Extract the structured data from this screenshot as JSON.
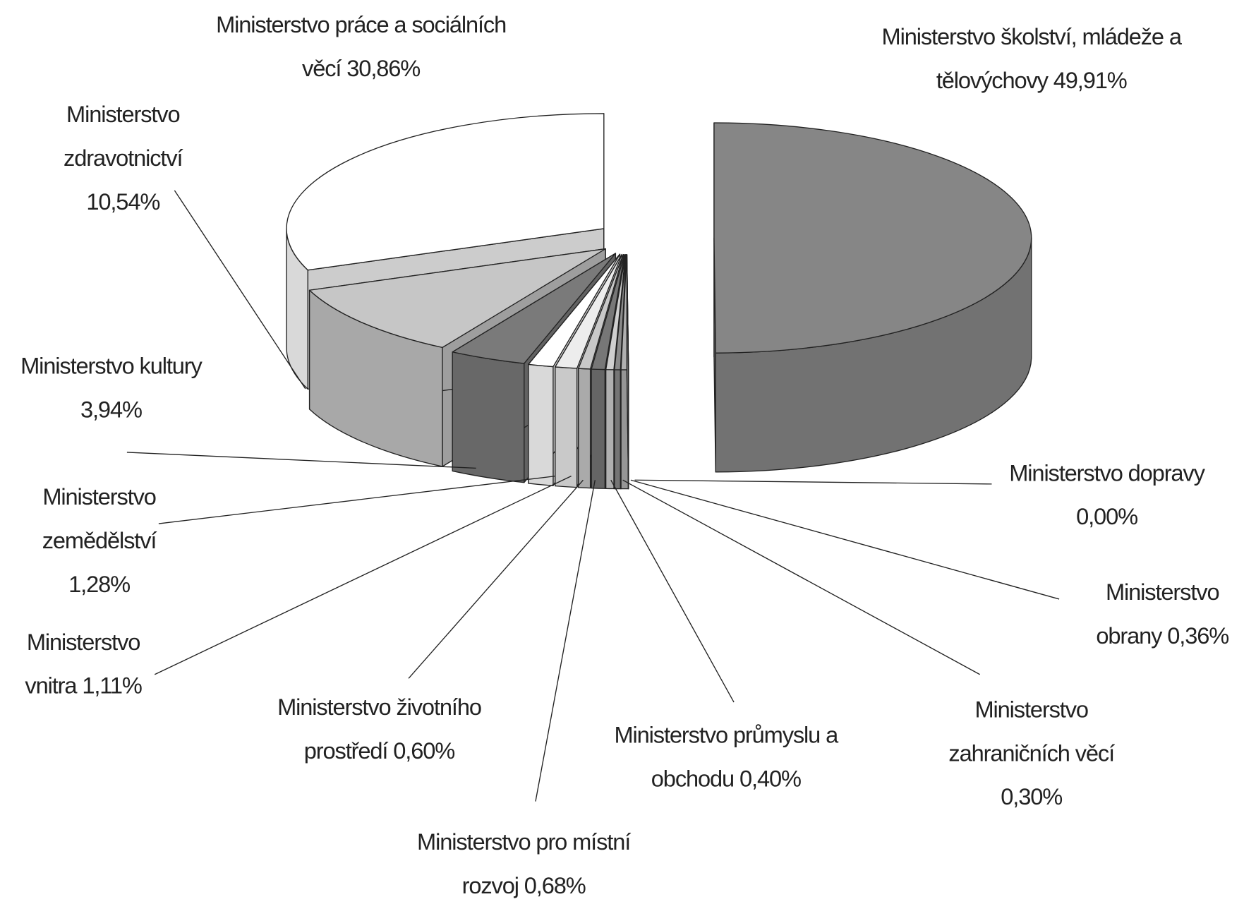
{
  "chart_data": {
    "type": "pie3d",
    "categories": [
      "Ministerstvo školství, mládeže a tělovýchovy",
      "Ministerstvo dopravy",
      "Ministerstvo obrany",
      "Ministerstvo zahraničních věcí",
      "Ministerstvo průmyslu a obchodu",
      "Ministerstvo pro místní rozvoj",
      "Ministerstvo životního prostředí",
      "Ministerstvo vnitra",
      "Ministerstvo zemědělství",
      "Ministerstvo kultury",
      "Ministerstvo zdravotnictví",
      "Ministerstvo práce a sociálních věcí"
    ],
    "values": [
      49.91,
      0.0,
      0.36,
      0.3,
      0.4,
      0.68,
      0.6,
      1.11,
      1.28,
      3.94,
      10.54,
      30.86
    ],
    "value_labels": [
      "49,91%",
      "0,00%",
      "0,36%",
      "0,30%",
      "0,40%",
      "0,68%",
      "0,60%",
      "1,11%",
      "1,28%",
      "3,94%",
      "10,54%",
      "30,86%"
    ],
    "colors": [
      "#868686",
      "#9a9a9a",
      "#b0b0b0",
      "#8a8a8a",
      "#cfcfcf",
      "#777777",
      "#c8c8c8",
      "#ededed",
      "#ffffff",
      "#7a7a7a",
      "#c6c6c6",
      "#ffffff"
    ]
  }
}
